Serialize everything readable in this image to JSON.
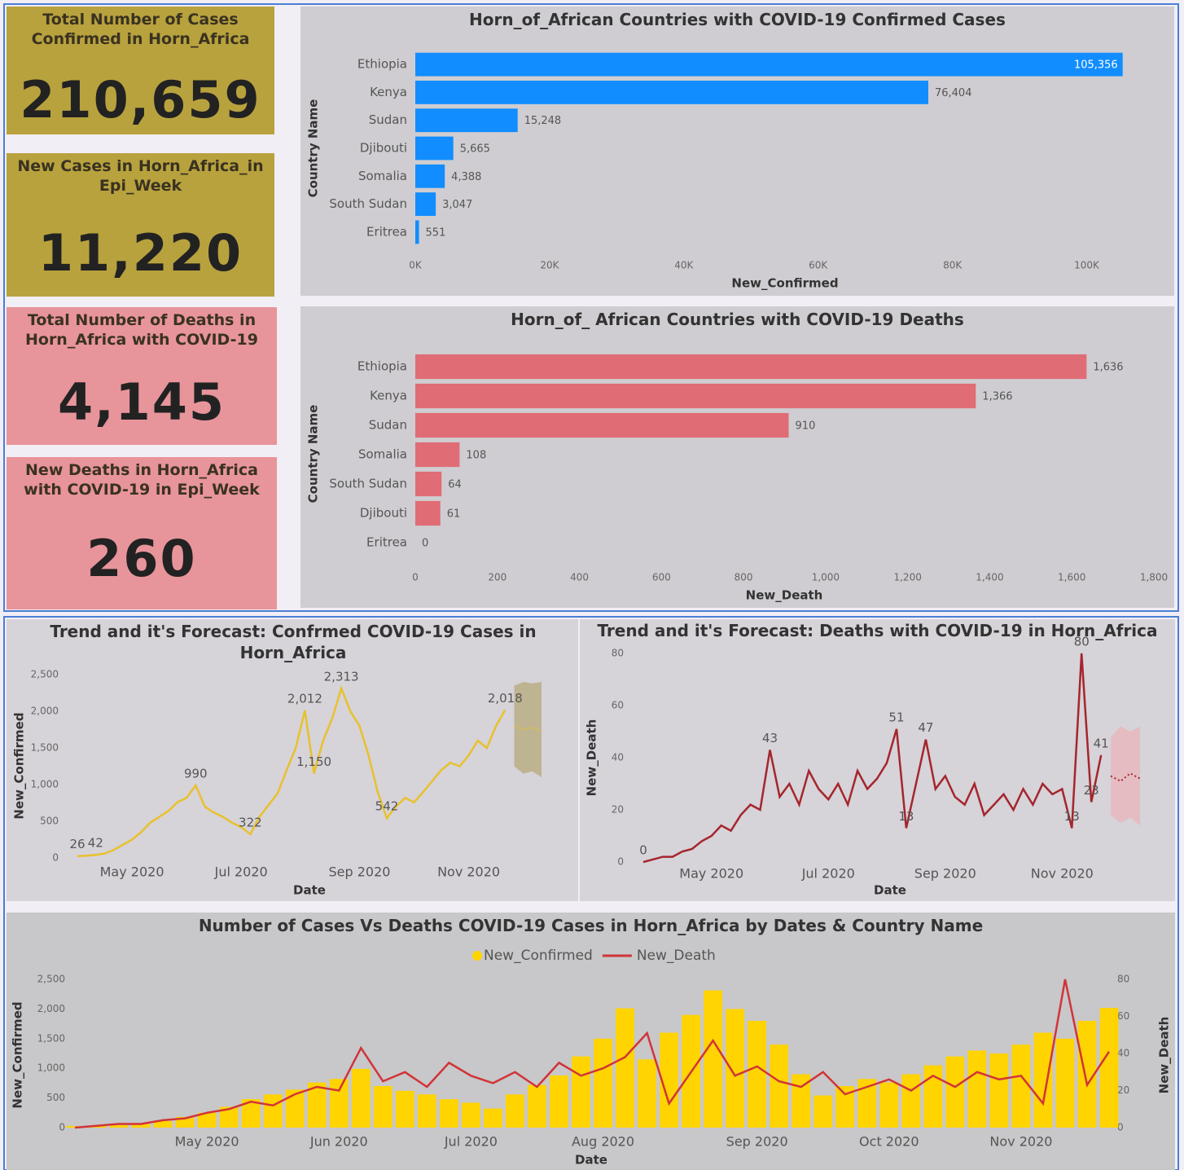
{
  "kpis": [
    {
      "title": "Total Number of Cases Confirmed in Horn_Africa",
      "value": "210,659"
    },
    {
      "title": "New Cases in Horn_Africa_in Epi_Week",
      "value": "11,220"
    },
    {
      "title": "Total Number of Deaths in Horn_Africa with COVID-19",
      "value": "4,145"
    },
    {
      "title": "New Deaths in Horn_Africa with COVID-19 in Epi_Week",
      "value": "260"
    }
  ],
  "chart_data": [
    {
      "type": "bar",
      "orientation": "horizontal",
      "title": "Horn_of_African Countries with COVID-19 Confirmed Cases",
      "x_label": "New_Confirmed",
      "y_label": "Country Name",
      "color": "#118dff",
      "grid": false,
      "categories": [
        "Ethiopia",
        "Kenya",
        "Sudan",
        "Djibouti",
        "Somalia",
        "South Sudan",
        "Eritrea"
      ],
      "values": [
        105356,
        76404,
        15248,
        5665,
        4388,
        3047,
        551
      ],
      "value_labels": [
        "105,356",
        "76,404",
        "15,248",
        "5,665",
        "4,388",
        "3,047",
        "551"
      ],
      "xlim": [
        0,
        110000
      ],
      "xticks": [
        {
          "value": 0,
          "label": "0K"
        },
        {
          "value": 20000,
          "label": "20K"
        },
        {
          "value": 40000,
          "label": "40K"
        },
        {
          "value": 60000,
          "label": "60K"
        },
        {
          "value": 80000,
          "label": "80K"
        },
        {
          "value": 100000,
          "label": "100K"
        }
      ]
    },
    {
      "type": "bar",
      "orientation": "horizontal",
      "title": "Horn_of_ African Countries with COVID-19 Deaths",
      "x_label": "New_Death",
      "y_label": "Country Name",
      "color": "#e06c75",
      "grid": false,
      "categories": [
        "Ethiopia",
        "Kenya",
        "Sudan",
        "Somalia",
        "South Sudan",
        "Djibouti",
        "Eritrea"
      ],
      "values": [
        1636,
        1366,
        910,
        108,
        64,
        61,
        0
      ],
      "value_labels": [
        "1,636",
        "1,366",
        "910",
        "108",
        "64",
        "61",
        "0"
      ],
      "xlim": [
        0,
        1800
      ],
      "xticks": [
        0,
        200,
        400,
        600,
        800,
        {
          "value": 1000,
          "label": "1,000"
        },
        {
          "value": 1200,
          "label": "1,200"
        },
        {
          "value": 1400,
          "label": "1,400"
        },
        {
          "value": 1600,
          "label": "1,600"
        },
        {
          "value": 1800,
          "label": "1,800"
        }
      ]
    },
    {
      "type": "line",
      "title": "Trend and it's Forecast: Confrmed COVID-19 Cases in Horn_Africa",
      "x_label": "Date",
      "y_label": "New_Confirmed",
      "color": "#e8c12c",
      "band_color": "#b9ad80",
      "grid": false,
      "categories": [
        null,
        null,
        null,
        null,
        null,
        null,
        "May 2020",
        null,
        null,
        null,
        null,
        null,
        null,
        null,
        null,
        null,
        null,
        null,
        "Jul 2020",
        null,
        null,
        null,
        null,
        null,
        null,
        null,
        null,
        null,
        null,
        null,
        null,
        "Sep 2020",
        null,
        null,
        null,
        null,
        null,
        null,
        null,
        null,
        null,
        null,
        null,
        "Nov 2020",
        null,
        null,
        null,
        null,
        null,
        null,
        null,
        null
      ],
      "values": [
        26,
        30,
        42,
        60,
        110,
        180,
        250,
        350,
        480,
        560,
        640,
        760,
        820,
        990,
        700,
        620,
        560,
        480,
        420,
        322,
        560,
        720,
        880,
        1200,
        1500,
        2012,
        1150,
        1600,
        1900,
        2313,
        2000,
        1800,
        1400,
        900,
        542,
        700,
        820,
        760,
        900,
        1050,
        1200,
        1300,
        1250,
        1400,
        1600,
        1500,
        1800,
        2018,
        null,
        null,
        null,
        null
      ],
      "value_labels": [
        "26",
        null,
        "42",
        null,
        null,
        null,
        null,
        null,
        null,
        null,
        null,
        null,
        null,
        "990",
        null,
        null,
        null,
        null,
        null,
        "322",
        null,
        null,
        null,
        null,
        null,
        "2,012",
        "1,150",
        null,
        null,
        "2,313",
        null,
        null,
        null,
        null,
        "542",
        null,
        null,
        null,
        null,
        null,
        null,
        null,
        null,
        null,
        null,
        null,
        null,
        "2,018",
        null,
        null,
        null,
        null
      ],
      "forecast": [
        null,
        null,
        null,
        null,
        null,
        null,
        null,
        null,
        null,
        null,
        null,
        null,
        null,
        null,
        null,
        null,
        null,
        null,
        null,
        null,
        null,
        null,
        null,
        null,
        null,
        null,
        null,
        null,
        null,
        null,
        null,
        null,
        null,
        null,
        null,
        null,
        null,
        null,
        null,
        null,
        null,
        null,
        null,
        null,
        null,
        null,
        null,
        null,
        1800,
        1750,
        1780,
        1720
      ],
      "forecast_upper": [
        null,
        null,
        null,
        null,
        null,
        null,
        null,
        null,
        null,
        null,
        null,
        null,
        null,
        null,
        null,
        null,
        null,
        null,
        null,
        null,
        null,
        null,
        null,
        null,
        null,
        null,
        null,
        null,
        null,
        null,
        null,
        null,
        null,
        null,
        null,
        null,
        null,
        null,
        null,
        null,
        null,
        null,
        null,
        null,
        null,
        null,
        null,
        null,
        2350,
        2400,
        2380,
        2400
      ],
      "forecast_lower": [
        null,
        null,
        null,
        null,
        null,
        null,
        null,
        null,
        null,
        null,
        null,
        null,
        null,
        null,
        null,
        null,
        null,
        null,
        null,
        null,
        null,
        null,
        null,
        null,
        null,
        null,
        null,
        null,
        null,
        null,
        null,
        null,
        null,
        null,
        null,
        null,
        null,
        null,
        null,
        null,
        null,
        null,
        null,
        null,
        null,
        null,
        null,
        null,
        1250,
        1150,
        1180,
        1100
      ],
      "ylim": [
        0,
        2500
      ],
      "yticks": [
        0,
        500,
        {
          "value": 1000,
          "label": "1,000"
        },
        {
          "value": 1500,
          "label": "1,500"
        },
        {
          "value": 2000,
          "label": "2,000"
        },
        {
          "value": 2500,
          "label": "2,500"
        }
      ]
    },
    {
      "type": "line",
      "title": "Trend and it's Forecast: Deaths with COVID-19 in Horn_Africa",
      "x_label": "Date",
      "y_label": "New_Death",
      "color": "#a4262c",
      "band_color": "#e9b7bb",
      "grid": false,
      "categories": [
        null,
        null,
        null,
        null,
        null,
        null,
        null,
        "May 2020",
        null,
        null,
        null,
        null,
        null,
        null,
        null,
        null,
        null,
        null,
        null,
        "Jul 2020",
        null,
        null,
        null,
        null,
        null,
        null,
        null,
        null,
        null,
        null,
        null,
        "Sep 2020",
        null,
        null,
        null,
        null,
        null,
        null,
        null,
        null,
        null,
        null,
        null,
        "Nov 2020",
        null,
        null,
        null,
        null,
        null,
        null,
        null,
        null
      ],
      "values": [
        0,
        1,
        2,
        2,
        4,
        5,
        8,
        10,
        14,
        12,
        18,
        22,
        20,
        43,
        25,
        30,
        22,
        35,
        28,
        24,
        30,
        22,
        35,
        28,
        32,
        38,
        51,
        13,
        30,
        47,
        28,
        33,
        25,
        22,
        30,
        18,
        22,
        26,
        20,
        28,
        22,
        30,
        26,
        28,
        13,
        80,
        23,
        41,
        null,
        null,
        null,
        null
      ],
      "value_labels": [
        "0",
        null,
        null,
        null,
        null,
        null,
        null,
        null,
        null,
        null,
        null,
        null,
        null,
        "43",
        null,
        null,
        null,
        null,
        null,
        null,
        null,
        null,
        null,
        null,
        null,
        null,
        "51",
        "13",
        null,
        "47",
        null,
        null,
        null,
        null,
        null,
        null,
        null,
        null,
        null,
        null,
        null,
        null,
        null,
        null,
        "13",
        "80",
        "23",
        "41",
        null,
        null,
        null,
        null
      ],
      "forecast": [
        null,
        null,
        null,
        null,
        null,
        null,
        null,
        null,
        null,
        null,
        null,
        null,
        null,
        null,
        null,
        null,
        null,
        null,
        null,
        null,
        null,
        null,
        null,
        null,
        null,
        null,
        null,
        null,
        null,
        null,
        null,
        null,
        null,
        null,
        null,
        null,
        null,
        null,
        null,
        null,
        null,
        null,
        null,
        null,
        null,
        null,
        null,
        null,
        33,
        31,
        34,
        32
      ],
      "forecast_upper": [
        null,
        null,
        null,
        null,
        null,
        null,
        null,
        null,
        null,
        null,
        null,
        null,
        null,
        null,
        null,
        null,
        null,
        null,
        null,
        null,
        null,
        null,
        null,
        null,
        null,
        null,
        null,
        null,
        null,
        null,
        null,
        null,
        null,
        null,
        null,
        null,
        null,
        null,
        null,
        null,
        null,
        null,
        null,
        null,
        null,
        null,
        null,
        null,
        48,
        52,
        50,
        52
      ],
      "forecast_lower": [
        null,
        null,
        null,
        null,
        null,
        null,
        null,
        null,
        null,
        null,
        null,
        null,
        null,
        null,
        null,
        null,
        null,
        null,
        null,
        null,
        null,
        null,
        null,
        null,
        null,
        null,
        null,
        null,
        null,
        null,
        null,
        null,
        null,
        null,
        null,
        null,
        null,
        null,
        null,
        null,
        null,
        null,
        null,
        null,
        null,
        null,
        null,
        null,
        18,
        15,
        17,
        14
      ],
      "ylim": [
        0,
        80
      ],
      "yticks": [
        0,
        20,
        40,
        60,
        80
      ]
    },
    {
      "type": "combo",
      "title": "Number of Cases Vs Deaths COVID-19 Cases in Horn_Africa by Dates & Country Name",
      "x_label": "Date",
      "y_label": "New_Confirmed",
      "y2_label": "New_Death",
      "grid": false,
      "categories": [
        null,
        null,
        null,
        null,
        null,
        null,
        "May 2020",
        null,
        null,
        null,
        null,
        null,
        "Jun 2020",
        null,
        null,
        null,
        null,
        null,
        "Jul 2020",
        null,
        null,
        null,
        null,
        null,
        "Aug 2020",
        null,
        null,
        null,
        null,
        null,
        null,
        "Sep 2020",
        null,
        null,
        null,
        null,
        null,
        "Oct 2020",
        null,
        null,
        null,
        null,
        null,
        "Nov 2020",
        null,
        null,
        null,
        null
      ],
      "series": [
        {
          "name": "New_Confirmed",
          "kind": "bar",
          "color": "#ffd400",
          "values": [
            26,
            30,
            42,
            60,
            110,
            180,
            250,
            350,
            480,
            560,
            640,
            760,
            820,
            990,
            700,
            620,
            560,
            480,
            420,
            322,
            560,
            720,
            880,
            1200,
            1500,
            2012,
            1150,
            1600,
            1900,
            2313,
            2000,
            1800,
            1400,
            900,
            542,
            700,
            820,
            760,
            900,
            1050,
            1200,
            1300,
            1250,
            1400,
            1600,
            1500,
            1800,
            2018
          ]
        },
        {
          "name": "New_Death",
          "kind": "line",
          "axis": "y2",
          "color": "#d13438",
          "values": [
            0,
            1,
            2,
            2,
            4,
            5,
            8,
            10,
            14,
            12,
            18,
            22,
            20,
            43,
            25,
            30,
            22,
            35,
            28,
            24,
            30,
            22,
            35,
            28,
            32,
            38,
            51,
            13,
            30,
            47,
            28,
            33,
            25,
            22,
            30,
            18,
            22,
            26,
            20,
            28,
            22,
            30,
            26,
            28,
            13,
            80,
            23,
            41
          ]
        }
      ],
      "ylim": [
        0,
        2500
      ],
      "yticks": [
        0,
        500,
        {
          "value": 1000,
          "label": "1,000"
        },
        {
          "value": 1500,
          "label": "1,500"
        },
        {
          "value": 2000,
          "label": "2,000"
        },
        {
          "value": 2500,
          "label": "2,500"
        }
      ],
      "y2lim": [
        0,
        80
      ],
      "y2ticks": [
        0,
        20,
        40,
        60,
        80
      ]
    }
  ]
}
